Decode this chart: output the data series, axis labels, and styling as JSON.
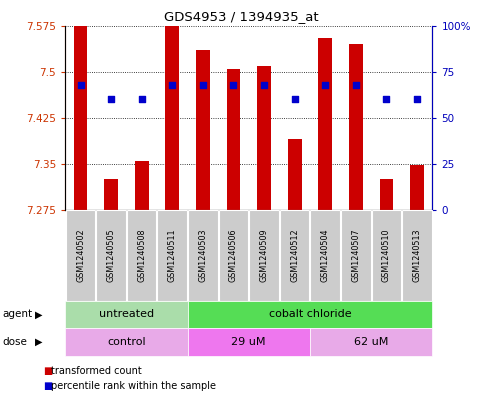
{
  "title": "GDS4953 / 1394935_at",
  "samples": [
    "GSM1240502",
    "GSM1240505",
    "GSM1240508",
    "GSM1240511",
    "GSM1240503",
    "GSM1240506",
    "GSM1240509",
    "GSM1240512",
    "GSM1240504",
    "GSM1240507",
    "GSM1240510",
    "GSM1240513"
  ],
  "bar_values": [
    7.575,
    7.325,
    7.355,
    7.575,
    7.535,
    7.505,
    7.51,
    7.39,
    7.555,
    7.545,
    7.325,
    7.348
  ],
  "percentile_values": [
    68,
    60,
    60,
    68,
    68,
    68,
    68,
    60,
    68,
    68,
    60,
    60
  ],
  "ymin": 7.275,
  "ymax": 7.575,
  "yticks": [
    7.275,
    7.35,
    7.425,
    7.5,
    7.575
  ],
  "y2ticks": [
    0,
    25,
    50,
    75,
    100
  ],
  "y2labels": [
    "0",
    "25",
    "50",
    "75",
    "100%"
  ],
  "bar_color": "#cc0000",
  "dot_color": "#0000cc",
  "agent_groups": [
    {
      "label": "untreated",
      "start": 0,
      "end": 3,
      "color": "#aaddaa"
    },
    {
      "label": "cobalt chloride",
      "start": 4,
      "end": 11,
      "color": "#55dd55"
    }
  ],
  "dose_groups": [
    {
      "label": "control",
      "start": 0,
      "end": 3,
      "color": "#e8aae8"
    },
    {
      "label": "29 uM",
      "start": 4,
      "end": 7,
      "color": "#ee77ee"
    },
    {
      "label": "62 uM",
      "start": 8,
      "end": 11,
      "color": "#e8aae8"
    }
  ],
  "tick_label_color": "#cc3300",
  "right_axis_color": "#0000bb",
  "bar_width": 0.45,
  "dot_size": 18,
  "sample_bg_color": "#cccccc",
  "legend_bar_color": "#cc0000",
  "legend_dot_color": "#0000cc"
}
